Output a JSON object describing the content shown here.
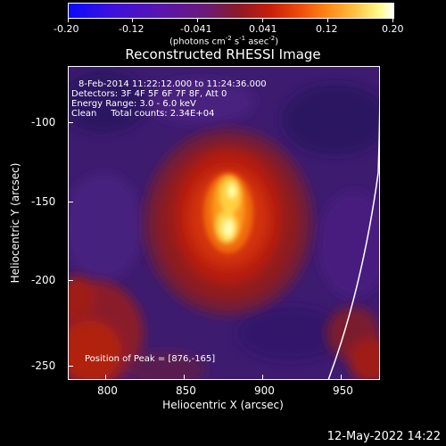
{
  "colorbar": {
    "labels": [
      "-0.20",
      "-0.12",
      "-0.041",
      "0.041",
      "0.12",
      "0.20"
    ],
    "units_prefix": "(photons cm",
    "units_exp1": "-2",
    "units_mid": " s",
    "units_exp2": "-1",
    "units_mid2": " asec",
    "units_exp3": "-2",
    "units_suffix": ")"
  },
  "title": "Reconstructed RHESSI Image",
  "info": {
    "line1": "8-Feb-2014 11:22:12.000 to 11:24:36.000",
    "line2": "Detectors: 3F 4F 5F 6F 7F 8F, Att 0",
    "line3": "Energy Range: 3.0 - 6.0 keV",
    "line4": "Clean     Total counts: 2.34E+04",
    "peak": "Position of Peak = [876,-165]"
  },
  "axes": {
    "xlabel": "Heliocentric X (arcsec)",
    "ylabel": "Heliocentric Y (arcsec)",
    "xticks": [
      "800",
      "850",
      "900",
      "950"
    ],
    "yticks": [
      "-100",
      "-150",
      "-200",
      "-250"
    ]
  },
  "footer": {
    "timestamp": "12-May-2022 14:22"
  },
  "colors": {
    "background": "#000000",
    "text": "#ffffff",
    "limb": "#ffffff"
  }
}
